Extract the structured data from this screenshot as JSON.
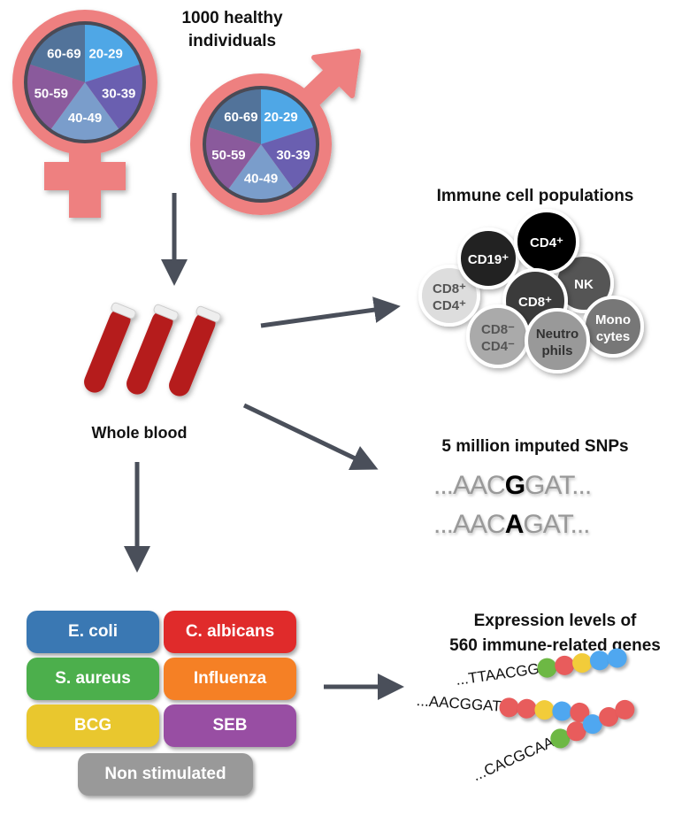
{
  "title": {
    "line1": "1000 healthy",
    "line2": "individuals"
  },
  "age_groups": [
    {
      "label": "20-29",
      "color": "#4FA7E6"
    },
    {
      "label": "30-39",
      "color": "#6A5FB0"
    },
    {
      "label": "40-49",
      "color": "#7A9DCB"
    },
    {
      "label": "50-59",
      "color": "#8A5A9C"
    },
    {
      "label": "60-69",
      "color": "#52739A"
    }
  ],
  "symbol_color": "#EE8080",
  "arrow_color": "#4A4F5A",
  "whole_blood": "Whole blood",
  "immune": {
    "title": "Immune cell populations",
    "cells": [
      {
        "l1": "CD8⁺",
        "l2": "CD4⁺",
        "color": "#DDDDDD",
        "text": "#555"
      },
      {
        "l1": "CD19⁺",
        "l2": "",
        "color": "#222222",
        "text": "#fff"
      },
      {
        "l1": "NK",
        "l2": "",
        "color": "#555555",
        "text": "#fff"
      },
      {
        "l1": "CD4⁺",
        "l2": "",
        "color": "#000000",
        "text": "#fff"
      },
      {
        "l1": "CD8⁺",
        "l2": "",
        "color": "#3A3A3A",
        "text": "#fff"
      },
      {
        "l1": "CD8⁻",
        "l2": "CD4⁻",
        "color": "#AAAAAA",
        "text": "#555"
      },
      {
        "l1": "Mono",
        "l2": "cytes",
        "color": "#777777",
        "text": "#fff"
      },
      {
        "l1": "Neutro",
        "l2": "phils",
        "color": "#999999",
        "text": "#333"
      }
    ]
  },
  "snps": {
    "title": "5 million imputed SNPs",
    "seq1": {
      "pre": "...AAC",
      "allele": "G",
      "post": "GAT..."
    },
    "seq2": {
      "pre": "...AAC",
      "allele": "A",
      "post": "GAT..."
    }
  },
  "stimuli": [
    {
      "label": "E. coli",
      "color": "#3A78B3"
    },
    {
      "label": "C. albicans",
      "color": "#E02B2B"
    },
    {
      "label": "S. aureus",
      "color": "#4CAF4C"
    },
    {
      "label": "Influenza",
      "color": "#F58025"
    },
    {
      "label": "BCG",
      "color": "#E9C72E"
    },
    {
      "label": "SEB",
      "color": "#984EA3"
    },
    {
      "label": "Non stimulated",
      "color": "#999999"
    }
  ],
  "expression": {
    "line1": "Expression levels of",
    "line2": "560 immune-related genes",
    "genes": [
      {
        "seq": "...TTAACGG",
        "dots": [
          "#6DB844",
          "#E85C5C",
          "#F2CC3A",
          "#4FA7F0",
          "#4FA7F0"
        ]
      },
      {
        "seq": "...AACGGAT",
        "dots": [
          "#E85C5C",
          "#E85C5C",
          "#F2CC3A",
          "#4FA7F0",
          "#E85C5C"
        ]
      },
      {
        "seq": "...CACGCAA",
        "dots": [
          "#6DB844",
          "#E85C5C",
          "#4FA7F0",
          "#E85C5C",
          "#E85C5C"
        ]
      }
    ]
  }
}
